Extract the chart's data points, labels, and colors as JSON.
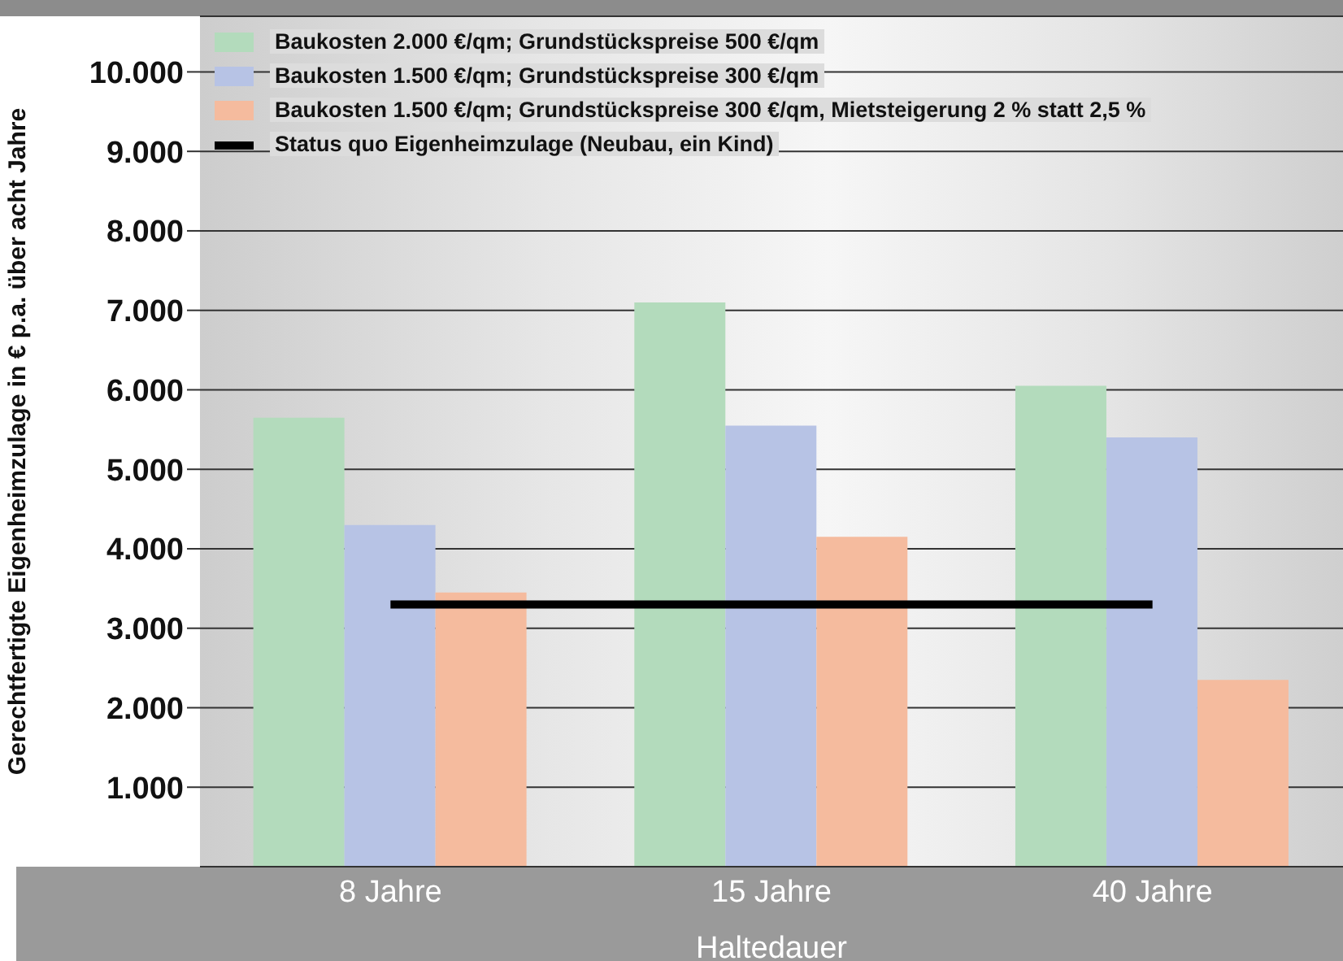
{
  "chart_data": {
    "type": "bar",
    "xlabel": "Haltedauer",
    "ylabel": "Gerechtfertigte Eigenheimzulage in € p.a. über acht Jahre",
    "categories": [
      "8 Jahre",
      "15 Jahre",
      "40 Jahre"
    ],
    "series": [
      {
        "name": "Baukosten 2.000 €/qm; Grundstückspreise 500 €/qm",
        "color": "#b3dbbc",
        "values": [
          5650,
          7100,
          6050
        ]
      },
      {
        "name": "Baukosten 1.500 €/qm; Grundstückspreise 300 €/qm",
        "color": "#b7c3e5",
        "values": [
          4300,
          5550,
          5400
        ]
      },
      {
        "name": "Baukosten 1.500 €/qm; Grundstückspreise 300 €/qm, Mietsteigerung 2 % statt 2,5 %",
        "color": "#f5bb9e",
        "values": [
          3450,
          4150,
          2350
        ]
      },
      {
        "name": "Status quo Eigenheimzulage (Neubau, ein Kind)",
        "type": "line",
        "color": "#000000",
        "values": [
          3300,
          3300,
          3300
        ]
      }
    ],
    "ylim": [
      0,
      10700
    ],
    "yticks": [
      {
        "value": 1000,
        "label": "1.000"
      },
      {
        "value": 2000,
        "label": "2.000"
      },
      {
        "value": 3000,
        "label": "3.000"
      },
      {
        "value": 4000,
        "label": "4.000"
      },
      {
        "value": 5000,
        "label": "5.000"
      },
      {
        "value": 6000,
        "label": "6.000"
      },
      {
        "value": 7000,
        "label": "7.000"
      },
      {
        "value": 8000,
        "label": "8.000"
      },
      {
        "value": 9000,
        "label": "9.000"
      },
      {
        "value": 10000,
        "label": "10.000"
      }
    ],
    "grid": "y",
    "legend": "top left",
    "marker": "none"
  }
}
